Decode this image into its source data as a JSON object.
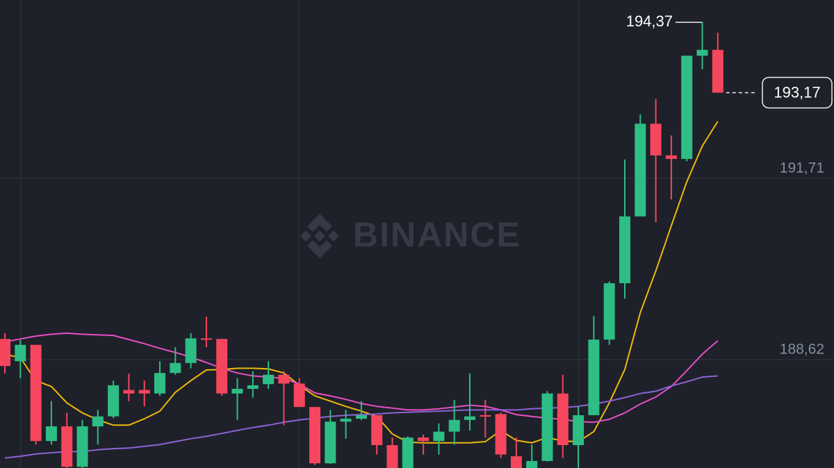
{
  "chart_data": {
    "type": "candlestick",
    "watermark": "BINANCE",
    "categories": [
      null,
      null,
      null,
      null,
      null,
      null,
      null,
      null,
      null,
      null,
      null,
      null,
      null,
      null,
      null,
      null,
      null,
      null,
      null,
      null,
      null,
      null,
      null,
      null,
      null,
      null,
      null,
      null,
      null,
      null,
      null,
      null,
      null,
      null,
      null,
      null,
      null,
      null,
      null,
      null,
      null,
      null,
      null,
      null,
      null,
      null,
      null
    ],
    "candles": {
      "open": [
        188.97,
        188.59,
        188.87,
        187.23,
        187.48,
        186.79,
        187.48,
        187.65,
        188.1,
        188.1,
        188.04,
        188.39,
        188.56,
        188.98,
        188.97,
        188.04,
        188.12,
        188.2,
        188.36,
        188.21,
        187.81,
        186.85,
        187.56,
        187.61,
        187.67,
        187.16,
        186.77,
        187.29,
        187.23,
        187.39,
        187.59,
        187.67,
        187.69,
        186.97,
        186.77,
        186.89,
        188.04,
        187.16,
        187.67,
        188.96,
        189.92,
        191.06,
        192.64,
        192.1,
        192.04,
        193.8,
        193.9
      ],
      "high": [
        189.07,
        188.95,
        188.87,
        187.91,
        187.71,
        187.59,
        187.76,
        188.26,
        188.38,
        188.26,
        188.59,
        188.83,
        189.07,
        189.35,
        188.97,
        188.3,
        188.42,
        188.59,
        188.42,
        188.3,
        187.81,
        187.76,
        187.76,
        187.91,
        187.67,
        187.29,
        187.31,
        187.34,
        187.53,
        187.93,
        188.38,
        187.93,
        187.72,
        187.29,
        187.17,
        188.08,
        188.36,
        187.82,
        189.36,
        189.95,
        192.03,
        192.8,
        193.06,
        192.44,
        193.8,
        194.37,
        194.19
      ],
      "low": [
        188.38,
        188.3,
        187.17,
        187.17,
        186.77,
        186.77,
        187.17,
        187.62,
        187.91,
        187.82,
        188.0,
        188.36,
        188.47,
        188.83,
        188.0,
        187.59,
        187.97,
        188.12,
        187.5,
        187.81,
        186.82,
        186.84,
        187.27,
        187.59,
        187.0,
        186.77,
        186.77,
        187.0,
        187.0,
        187.17,
        187.41,
        187.29,
        186.94,
        186.77,
        186.77,
        186.88,
        186.94,
        186.77,
        187.82,
        188.87,
        189.66,
        191.06,
        190.96,
        191.35,
        192.0,
        193.57,
        193.17
      ],
      "close": [
        188.51,
        188.87,
        187.23,
        187.48,
        186.79,
        187.48,
        187.65,
        188.18,
        188.04,
        188.04,
        188.39,
        188.56,
        188.98,
        188.97,
        188.04,
        188.12,
        188.18,
        188.36,
        188.21,
        187.81,
        186.85,
        187.56,
        187.61,
        187.67,
        187.16,
        186.77,
        187.29,
        187.23,
        187.39,
        187.59,
        187.65,
        187.65,
        187.0,
        186.77,
        186.89,
        188.04,
        187.16,
        187.67,
        188.96,
        189.92,
        191.06,
        192.64,
        192.1,
        192.04,
        193.8,
        193.9,
        193.17
      ]
    },
    "up_color": "#2ebd85",
    "down_color": "#f6465d",
    "lines": [
      {
        "color": "#f0b90b",
        "values": [
          188.71,
          188.65,
          188.26,
          188.16,
          187.88,
          187.71,
          187.59,
          187.5,
          187.5,
          187.61,
          187.74,
          188.06,
          188.26,
          188.44,
          188.45,
          188.47,
          188.47,
          188.46,
          188.39,
          188.18,
          188.0,
          187.91,
          187.82,
          187.74,
          187.65,
          187.35,
          187.21,
          187.2,
          187.2,
          187.2,
          187.2,
          187.22,
          187.41,
          187.24,
          187.2,
          187.29,
          187.23,
          187.22,
          187.39,
          187.88,
          188.45,
          189.42,
          190.13,
          190.9,
          191.65,
          192.26,
          192.68
        ]
      },
      {
        "color": "#e64fc4",
        "values": [
          188.92,
          188.97,
          189.02,
          189.05,
          189.07,
          189.05,
          189.04,
          189.03,
          188.96,
          188.89,
          188.81,
          188.74,
          188.66,
          188.57,
          188.47,
          188.39,
          188.34,
          188.32,
          188.3,
          188.2,
          188.05,
          188.0,
          187.94,
          187.87,
          187.82,
          187.79,
          187.76,
          187.76,
          187.78,
          187.81,
          187.84,
          187.82,
          187.76,
          187.68,
          187.65,
          187.62,
          187.6,
          187.56,
          187.55,
          187.6,
          187.71,
          187.86,
          187.98,
          188.16,
          188.43,
          188.71,
          188.94
        ]
      },
      {
        "color": "#8e62d9",
        "values": [
          186.94,
          186.97,
          187.01,
          187.03,
          187.05,
          187.05,
          187.08,
          187.1,
          187.11,
          187.14,
          187.17,
          187.22,
          187.27,
          187.31,
          187.36,
          187.41,
          187.46,
          187.5,
          187.55,
          187.59,
          187.62,
          187.65,
          187.67,
          187.68,
          187.69,
          187.71,
          187.72,
          187.73,
          187.74,
          187.75,
          187.76,
          187.76,
          187.76,
          187.76,
          187.78,
          187.79,
          187.8,
          187.82,
          187.86,
          187.91,
          187.97,
          188.04,
          188.08,
          188.17,
          188.24,
          188.32,
          188.34
        ]
      }
    ],
    "ylim": [
      186.77,
      194.75
    ],
    "yticks": [
      {
        "value": 188.62,
        "label": "188,62"
      },
      {
        "value": 191.71,
        "label": "191,71"
      }
    ],
    "grid": true,
    "high_marker": {
      "value": 194.37,
      "label": "194,37"
    },
    "last_price": {
      "value": 193.17,
      "label": "193,17"
    }
  }
}
